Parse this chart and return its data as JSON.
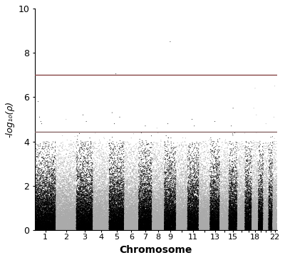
{
  "title": "",
  "xlabel": "Chromosome",
  "ylabel": "-log₁₀(ρ)",
  "ylim": [
    0,
    10
  ],
  "yticks": [
    0,
    2,
    4,
    6,
    8,
    10
  ],
  "chromosomes": [
    1,
    2,
    3,
    4,
    5,
    6,
    7,
    8,
    9,
    10,
    11,
    12,
    13,
    14,
    15,
    16,
    17,
    18,
    19,
    20,
    21,
    22
  ],
  "chrom_labels": [
    "1",
    "2",
    "3",
    "4",
    "5",
    "6",
    "7",
    "8",
    "9",
    "",
    "11",
    "",
    "13",
    "",
    "15",
    "",
    "",
    "18",
    "",
    "",
    "",
    "22"
  ],
  "suggestive_line": 4.45,
  "genome_wide_line": 7.0,
  "suggestive_color": "#886666",
  "genome_wide_color": "#884444",
  "odd_color": "#000000",
  "even_color": "#aaaaaa",
  "background_color": "#ffffff",
  "n_points_per_chrom": 8000,
  "seed": 42,
  "marker_size": 0.5,
  "figsize": [
    4.0,
    3.65
  ],
  "dpi": 100,
  "chrom_sizes": {
    "1": 249,
    "2": 243,
    "3": 198,
    "4": 191,
    "5": 181,
    "6": 171,
    "7": 159,
    "8": 146,
    "9": 141,
    "10": 135,
    "11": 135,
    "12": 133,
    "13": 115,
    "14": 107,
    "15": 103,
    "16": 90,
    "17": 81,
    "18": 78,
    "19": 59,
    "20": 63,
    "21": 48,
    "22": 51
  },
  "notable_points": [
    [
      8,
      0.5,
      8.5
    ],
    [
      4,
      0.45,
      7.05
    ],
    [
      0,
      0.15,
      5.8
    ],
    [
      0,
      0.22,
      5.1
    ],
    [
      0,
      0.28,
      4.9
    ],
    [
      0,
      0.32,
      4.8
    ],
    [
      1,
      0.5,
      5.0
    ],
    [
      2,
      0.4,
      5.2
    ],
    [
      2,
      0.6,
      4.9
    ],
    [
      4,
      0.2,
      5.3
    ],
    [
      4,
      0.7,
      5.1
    ],
    [
      4,
      0.35,
      4.8
    ],
    [
      6,
      0.5,
      4.7
    ],
    [
      7,
      0.4,
      4.6
    ],
    [
      8,
      0.3,
      4.8
    ],
    [
      10,
      0.4,
      5.0
    ],
    [
      10,
      0.6,
      4.7
    ],
    [
      12,
      0.5,
      4.9
    ],
    [
      14,
      0.5,
      5.5
    ],
    [
      14,
      0.3,
      4.7
    ],
    [
      17,
      0.5,
      6.4
    ],
    [
      17,
      0.3,
      5.5
    ],
    [
      17,
      0.7,
      5.2
    ],
    [
      19,
      0.5,
      4.8
    ],
    [
      21,
      0.5,
      6.5
    ],
    [
      21,
      0.3,
      5.1
    ]
  ]
}
